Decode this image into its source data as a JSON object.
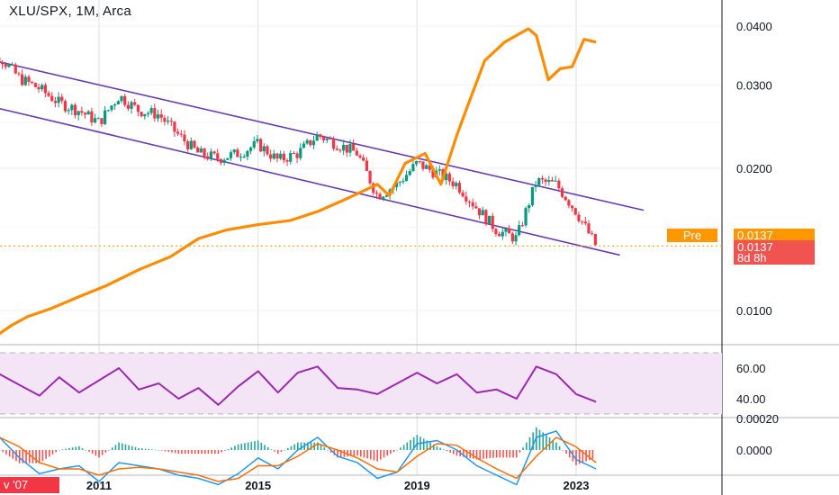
{
  "header": {
    "title": "XLU/SPX, 1M, Arca"
  },
  "badges": {
    "pre_label": "Pre",
    "pre_price": "0.0137",
    "last_price": "0.0137",
    "countdown": "8d 8h",
    "start_date": "v '07"
  },
  "colors": {
    "candle_up": "#089981",
    "candle_down": "#f23645",
    "overlay_line": "#ff8c00",
    "channel": "#673ab7",
    "rsi_line": "#9c27b0",
    "rsi_band": "#f3e5f5",
    "macd_line": "#2196f3",
    "signal_line": "#ff6d00",
    "pre_tag": "#ff9800",
    "price_tag": "#f05350",
    "price_line": "#ff9800"
  },
  "chart_data": [
    {
      "type": "candlestick",
      "pane": "price",
      "title": "XLU/SPX, 1M, Arca",
      "y_ticks": [
        "0.0400",
        "0.0300",
        "0.0200",
        "0.0100"
      ],
      "x_ticks": [
        "2011",
        "2015",
        "2019",
        "2023"
      ],
      "ylim": [
        0.004,
        0.043
      ],
      "scale": "log",
      "last_value": 0.0137,
      "series": [
        {
          "kind": "candles",
          "x": [
            2007.9,
            2008.5,
            2009.0,
            2009.5,
            2010.0,
            2010.5,
            2011.0,
            2011.5,
            2012.0,
            2012.5,
            2013.0,
            2013.5,
            2014.0,
            2014.5,
            2015.0,
            2015.5,
            2016.0,
            2016.5,
            2017.0,
            2017.5,
            2018.0,
            2018.5,
            2019.0,
            2019.5,
            2020.0,
            2020.5,
            2021.0,
            2021.5,
            2022.0,
            2022.5,
            2023.0,
            2023.5
          ],
          "y": [
            0.0325,
            0.0345,
            0.031,
            0.0295,
            0.0275,
            0.0265,
            0.025,
            0.0285,
            0.0265,
            0.026,
            0.0235,
            0.0215,
            0.021,
            0.0215,
            0.0225,
            0.0208,
            0.0215,
            0.0235,
            0.0225,
            0.0215,
            0.0175,
            0.0185,
            0.0205,
            0.0195,
            0.0185,
            0.0165,
            0.0148,
            0.0142,
            0.0188,
            0.0185,
            0.0162,
            0.0137
          ]
        },
        {
          "kind": "line",
          "x": [
            2007.9,
            2008.3,
            2008.8,
            2009.2,
            2009.8,
            2010.5,
            2011.2,
            2012.0,
            2012.8,
            2013.5,
            2014.2,
            2015.0,
            2015.8,
            2016.5,
            2017.2,
            2018.0,
            2018.3,
            2018.7,
            2019.2,
            2019.6,
            2020.0,
            2020.3,
            2020.7,
            2021.2,
            2021.8,
            2022.0,
            2022.3,
            2022.6,
            2022.9,
            2023.2,
            2023.5
          ],
          "y": [
            0.0098,
            0.0087,
            0.0093,
            0.0097,
            0.0101,
            0.0107,
            0.0113,
            0.0122,
            0.013,
            0.0142,
            0.0148,
            0.0152,
            0.0155,
            0.0162,
            0.0172,
            0.0185,
            0.0175,
            0.0205,
            0.0215,
            0.0185,
            0.0235,
            0.0275,
            0.0338,
            0.037,
            0.0395,
            0.0382,
            0.0308,
            0.0325,
            0.0328,
            0.0375,
            0.037
          ]
        }
      ]
    },
    {
      "type": "line",
      "pane": "rsi",
      "y_ticks": [
        "60.00",
        "40.00"
      ],
      "ylim": [
        28,
        72
      ],
      "band": [
        30,
        70
      ],
      "x": [
        2007.9,
        2008.5,
        2009.0,
        2009.5,
        2010.0,
        2010.5,
        2011.0,
        2011.5,
        2012.0,
        2012.5,
        2013.0,
        2013.5,
        2014.0,
        2014.5,
        2015.0,
        2015.5,
        2016.0,
        2016.5,
        2017.0,
        2017.5,
        2018.0,
        2018.5,
        2019.0,
        2019.5,
        2020.0,
        2020.5,
        2021.0,
        2021.5,
        2022.0,
        2022.5,
        2023.0,
        2023.5
      ],
      "values": [
        63,
        56,
        49,
        42,
        54,
        44,
        52,
        60,
        46,
        50,
        40,
        47,
        36,
        48,
        58,
        44,
        57,
        61,
        47,
        46,
        43,
        50,
        57,
        50,
        56,
        44,
        46,
        40,
        61,
        56,
        43,
        38
      ]
    },
    {
      "type": "bar+line",
      "pane": "macd",
      "y_ticks": [
        "0.00020",
        "0.0000"
      ],
      "ylim": [
        -0.0004,
        0.0003
      ],
      "x": [
        2007.9,
        2008.5,
        2009.0,
        2009.5,
        2010.0,
        2010.5,
        2011.0,
        2011.5,
        2012.0,
        2012.5,
        2013.0,
        2013.5,
        2014.0,
        2014.5,
        2015.0,
        2015.5,
        2016.0,
        2016.5,
        2017.0,
        2017.5,
        2018.0,
        2018.5,
        2019.0,
        2019.5,
        2020.0,
        2020.5,
        2021.0,
        2021.5,
        2022.0,
        2022.5,
        2023.0,
        2023.5
      ],
      "macd": [
        0.00012,
        8e-05,
        -5e-05,
        -0.00015,
        -0.00012,
        -0.0001,
        -0.0002,
        -8e-05,
        -0.0001,
        -0.00012,
        -0.00016,
        -0.00018,
        -0.00022,
        -0.00015,
        -5e-05,
        -0.00012,
        0.0,
        8e-05,
        -4e-05,
        -8e-05,
        -0.00018,
        -0.00014,
        4e-05,
        6e-05,
        0.0,
        -0.0001,
        -0.00016,
        -0.00022,
        8e-05,
        0.00012,
        -6e-05,
        -0.00012
      ],
      "signal": [
        6e-05,
        8e-05,
        2e-05,
        -8e-05,
        -0.00012,
        -0.00012,
        -0.00016,
        -0.00012,
        -0.00011,
        -0.00012,
        -0.00014,
        -0.00016,
        -0.0002,
        -0.00018,
        -0.0001,
        -0.0001,
        -4e-05,
        4e-05,
        0.0,
        -5e-05,
        -0.00012,
        -0.00014,
        -4e-05,
        4e-05,
        3e-05,
        -5e-05,
        -0.00012,
        -0.00018,
        -4e-05,
        8e-05,
        2e-05,
        -8e-05
      ]
    }
  ]
}
